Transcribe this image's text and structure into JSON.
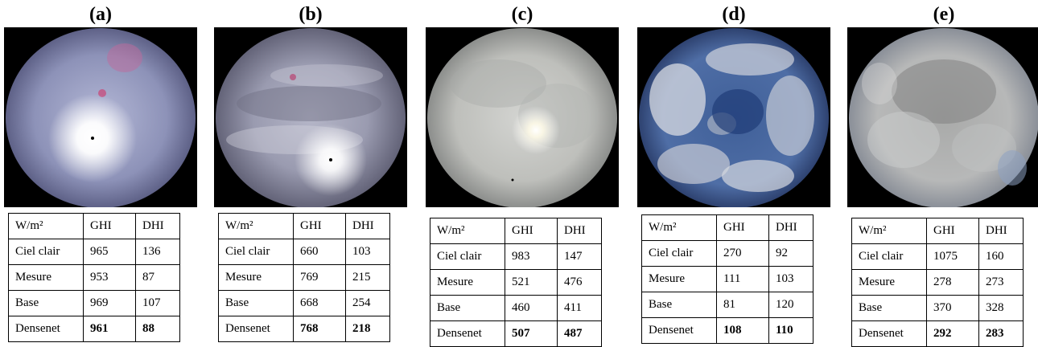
{
  "panels": [
    {
      "label": "(a)",
      "sky": "clear-sky-sun",
      "header": [
        "W/m²",
        "GHI",
        "DHI"
      ],
      "rows": [
        {
          "label": "Ciel clair",
          "ghi": "965",
          "dhi": "136"
        },
        {
          "label": "Mesure",
          "ghi": "953",
          "dhi": "87"
        },
        {
          "label": "Base",
          "ghi": "969",
          "dhi": "107"
        },
        {
          "label": "Densenet",
          "ghi": "961",
          "dhi": "88"
        }
      ]
    },
    {
      "label": "(b)",
      "sky": "thin-cirrus-sun",
      "header": [
        "W/m²",
        "GHI",
        "DHI"
      ],
      "rows": [
        {
          "label": "Ciel clair",
          "ghi": "660",
          "dhi": "103"
        },
        {
          "label": "Mesure",
          "ghi": "769",
          "dhi": "215"
        },
        {
          "label": "Base",
          "ghi": "668",
          "dhi": "254"
        },
        {
          "label": "Densenet",
          "ghi": "768",
          "dhi": "218"
        }
      ]
    },
    {
      "label": "(c)",
      "sky": "overcast-sun",
      "header": [
        "W/m²",
        "GHI",
        "DHI"
      ],
      "rows": [
        {
          "label": "Ciel clair",
          "ghi": "983",
          "dhi": "147"
        },
        {
          "label": "Mesure",
          "ghi": "521",
          "dhi": "476"
        },
        {
          "label": "Base",
          "ghi": "460",
          "dhi": "411"
        },
        {
          "label": "Densenet",
          "ghi": "507",
          "dhi": "487"
        }
      ]
    },
    {
      "label": "(d)",
      "sky": "broken-clouds-blue",
      "header": [
        "W/m²",
        "GHI",
        "DHI"
      ],
      "rows": [
        {
          "label": "Ciel clair",
          "ghi": "270",
          "dhi": "92"
        },
        {
          "label": "Mesure",
          "ghi": "111",
          "dhi": "103"
        },
        {
          "label": "Base",
          "ghi": "81",
          "dhi": "120"
        },
        {
          "label": "Densenet",
          "ghi": "108",
          "dhi": "110"
        }
      ]
    },
    {
      "label": "(e)",
      "sky": "overcast-grey",
      "header": [
        "W/m²",
        "GHI",
        "DHI"
      ],
      "rows": [
        {
          "label": "Ciel clair",
          "ghi": "1075",
          "dhi": "160"
        },
        {
          "label": "Mesure",
          "ghi": "278",
          "dhi": "273"
        },
        {
          "label": "Base",
          "ghi": "370",
          "dhi": "328"
        },
        {
          "label": "Densenet",
          "ghi": "292",
          "dhi": "283"
        }
      ]
    }
  ]
}
